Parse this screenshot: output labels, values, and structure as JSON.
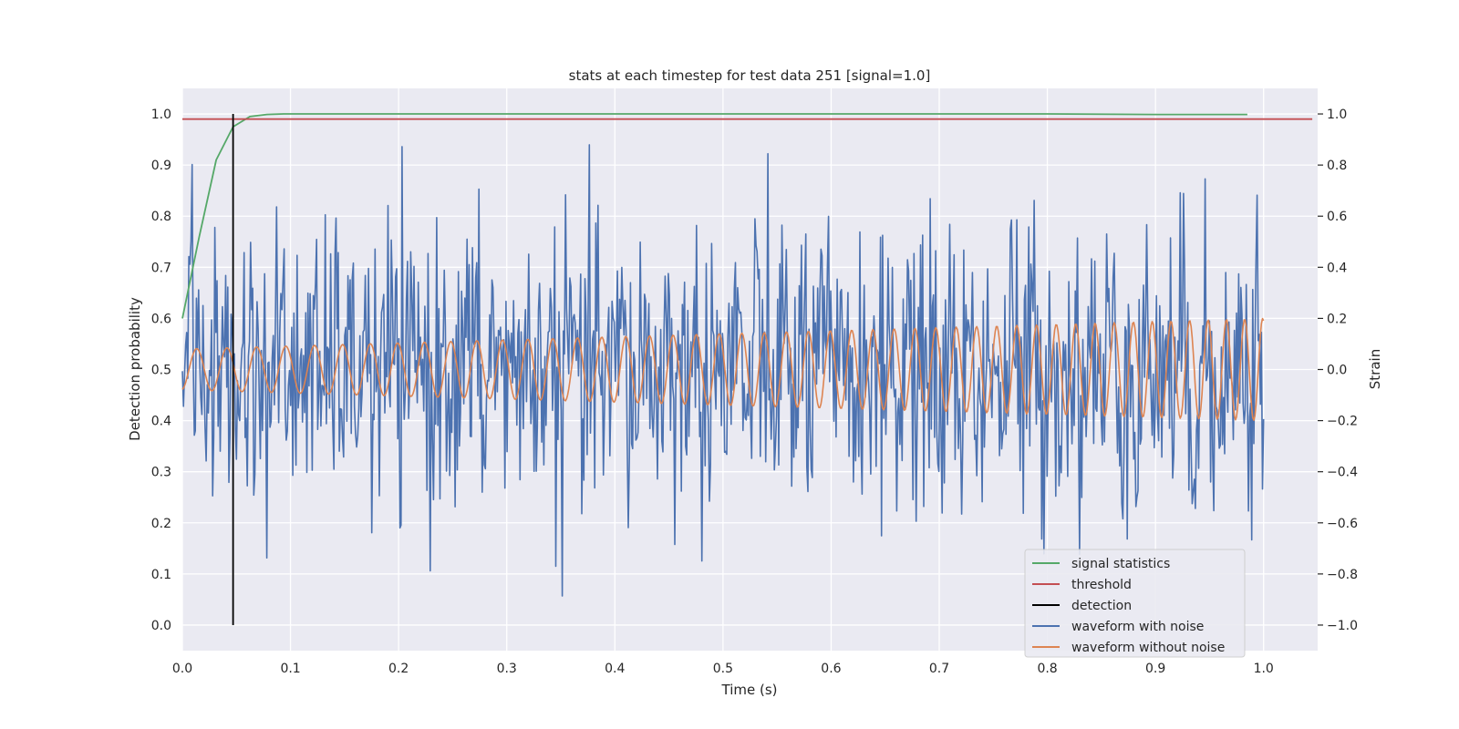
{
  "chart_data": {
    "type": "line",
    "title": "stats at each timestep for test data 251 [signal=1.0]",
    "xlabel": "Time (s)",
    "ylabel_left": "Detection probability",
    "ylabel_right": "Strain",
    "xlim": [
      0.0,
      1.05
    ],
    "ylim_left": [
      -0.05,
      1.05
    ],
    "ylim_right": [
      -1.1,
      1.1
    ],
    "x_ticks": [
      0.0,
      0.1,
      0.2,
      0.3,
      0.4,
      0.5,
      0.6,
      0.7,
      0.8,
      0.9,
      1.0
    ],
    "x_tick_labels": [
      "0.0",
      "0.1",
      "0.2",
      "0.3",
      "0.4",
      "0.5",
      "0.6",
      "0.7",
      "0.8",
      "0.9",
      "1.0"
    ],
    "y_left_ticks": [
      0.0,
      0.1,
      0.2,
      0.3,
      0.4,
      0.5,
      0.6,
      0.7,
      0.8,
      0.9,
      1.0
    ],
    "y_left_tick_labels": [
      "0.0",
      "0.1",
      "0.2",
      "0.3",
      "0.4",
      "0.5",
      "0.6",
      "0.7",
      "0.8",
      "0.9",
      "1.0"
    ],
    "y_right_ticks": [
      -1.0,
      -0.8,
      -0.6,
      -0.4,
      -0.2,
      0.0,
      0.2,
      0.4,
      0.6,
      0.8,
      1.0
    ],
    "y_right_tick_labels": [
      "−1.0",
      "−0.8",
      "−0.6",
      "−0.4",
      "−0.2",
      "0.0",
      "0.2",
      "0.4",
      "0.6",
      "0.8",
      "1.0"
    ],
    "grid": true,
    "background": "#eaeaf2",
    "legend_position": "lower-right",
    "series": [
      {
        "name": "signal statistics",
        "axis": "left",
        "color": "#55a868",
        "x": [
          0.0,
          0.0156,
          0.0313,
          0.0469,
          0.0625,
          0.0781,
          0.0938,
          0.125,
          0.2,
          0.4,
          0.6,
          0.8,
          0.9,
          0.985
        ],
        "y": [
          0.6,
          0.76,
          0.91,
          0.975,
          0.995,
          0.999,
          1.0,
          1.0,
          1.0,
          1.0,
          1.0,
          1.0,
          0.999,
          0.999
        ]
      },
      {
        "name": "threshold",
        "axis": "left",
        "color": "#c44e52",
        "x": [
          0.0,
          1.045
        ],
        "y": [
          0.99,
          0.99
        ]
      },
      {
        "name": "detection",
        "axis": "left",
        "color": "#000000",
        "x": [
          0.0469,
          0.0469
        ],
        "y": [
          0.0,
          1.0
        ]
      },
      {
        "name": "waveform with noise",
        "axis": "right",
        "color": "#4c72b0",
        "generated": {
          "n": 1000,
          "x_start": 0.0,
          "x_end": 1.0,
          "y_min": -1.0,
          "y_max": 1.0
        }
      },
      {
        "name": "waveform without noise",
        "axis": "right",
        "color": "#dd8452",
        "generated": {
          "n": 1000,
          "x_start": 0.0,
          "x_end": 1.0,
          "amp_start": 0.08,
          "amp_end": 0.2,
          "f_start": 35,
          "f_end": 60
        }
      }
    ]
  }
}
